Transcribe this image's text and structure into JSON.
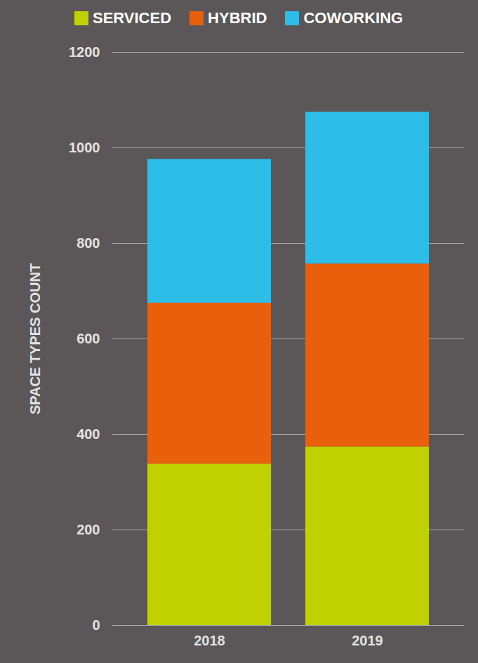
{
  "chart_data": {
    "type": "bar",
    "stacked": true,
    "categories": [
      "2018",
      "2019"
    ],
    "series": [
      {
        "name": "SERVICED",
        "color": "#c0d100",
        "values": [
          338,
          374
        ]
      },
      {
        "name": "HYBRID",
        "color": "#e8600c",
        "values": [
          337,
          383
        ]
      },
      {
        "name": "COWORKING",
        "color": "#2ebce8",
        "values": [
          301,
          318
        ]
      }
    ],
    "ylabel": "SPACE TYPES COUNT",
    "ylim": [
      0,
      1200
    ],
    "yticks": [
      0,
      200,
      400,
      600,
      800,
      1000,
      1200
    ],
    "grid": true,
    "legend": "top"
  }
}
